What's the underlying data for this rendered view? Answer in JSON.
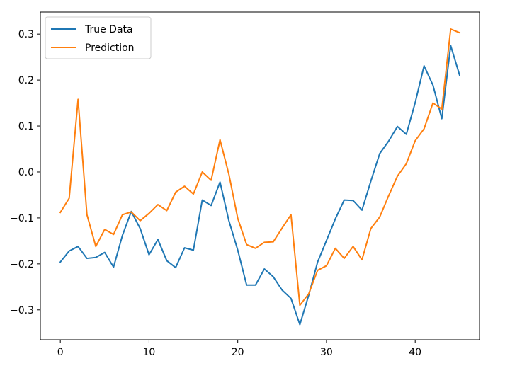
{
  "chart_data": {
    "type": "line",
    "title": "",
    "xlabel": "",
    "ylabel": "",
    "xlim": [
      -2.25,
      47.25
    ],
    "ylim": [
      -0.365,
      0.348
    ],
    "xticks": [
      0,
      10,
      20,
      30,
      40
    ],
    "xtick_labels": [
      "0",
      "10",
      "20",
      "30",
      "40"
    ],
    "yticks": [
      -0.3,
      -0.2,
      -0.1,
      0.0,
      0.1,
      0.2,
      0.3
    ],
    "ytick_labels": [
      "−0.3",
      "−0.2",
      "−0.1",
      "0.0",
      "0.1",
      "0.2",
      "0.3"
    ],
    "grid": false,
    "legend": {
      "position": "top-left",
      "entries": [
        "True Data",
        "Prediction"
      ]
    },
    "x": [
      0,
      1,
      2,
      3,
      4,
      5,
      6,
      7,
      8,
      9,
      10,
      11,
      12,
      13,
      14,
      15,
      16,
      17,
      18,
      19,
      20,
      21,
      22,
      23,
      24,
      25,
      26,
      27,
      28,
      29,
      30,
      31,
      32,
      33,
      34,
      35,
      36,
      37,
      38,
      39,
      40,
      41,
      42,
      43,
      44,
      45
    ],
    "series": [
      {
        "name": "True Data",
        "color": "#1f77b4",
        "values": [
          -0.196,
          -0.172,
          -0.162,
          -0.188,
          -0.186,
          -0.175,
          -0.207,
          -0.138,
          -0.086,
          -0.123,
          -0.18,
          -0.147,
          -0.193,
          -0.208,
          -0.165,
          -0.17,
          -0.061,
          -0.073,
          -0.022,
          -0.106,
          -0.17,
          -0.246,
          -0.246,
          -0.211,
          -0.228,
          -0.257,
          -0.275,
          -0.332,
          -0.268,
          -0.196,
          -0.149,
          -0.102,
          -0.061,
          -0.062,
          -0.083,
          -0.02,
          0.04,
          0.067,
          0.099,
          0.082,
          0.151,
          0.231,
          0.189,
          0.116,
          0.275,
          0.211
        ]
      },
      {
        "name": "Prediction",
        "color": "#ff7f0e",
        "values": [
          -0.088,
          -0.057,
          0.158,
          -0.093,
          -0.162,
          -0.125,
          -0.136,
          -0.093,
          -0.087,
          -0.106,
          -0.09,
          -0.071,
          -0.084,
          -0.044,
          -0.031,
          -0.048,
          0.0,
          -0.018,
          0.07,
          -0.005,
          -0.101,
          -0.158,
          -0.166,
          -0.153,
          -0.152,
          -0.122,
          -0.093,
          -0.29,
          -0.265,
          -0.214,
          -0.204,
          -0.166,
          -0.188,
          -0.162,
          -0.191,
          -0.123,
          -0.098,
          -0.052,
          -0.009,
          0.018,
          0.068,
          0.094,
          0.15,
          0.137,
          0.311,
          0.303
        ]
      }
    ]
  }
}
